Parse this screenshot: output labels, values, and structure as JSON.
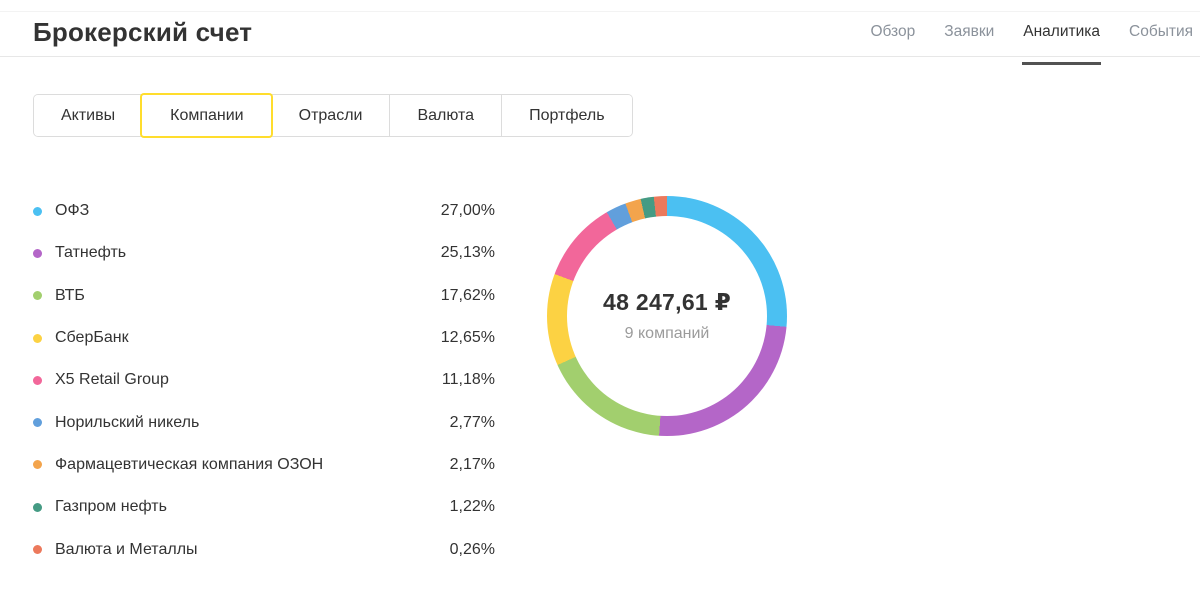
{
  "page": {
    "title": "Брокерский счет"
  },
  "header": {
    "tabs": [
      {
        "label": "Обзор",
        "active": false
      },
      {
        "label": "Заявки",
        "active": false
      },
      {
        "label": "Аналитика",
        "active": true
      },
      {
        "label": "События",
        "active": false
      }
    ]
  },
  "filter_tabs": [
    {
      "label": "Активы",
      "selected": false
    },
    {
      "label": "Компании",
      "selected": true
    },
    {
      "label": "Отрасли",
      "selected": false
    },
    {
      "label": "Валюта",
      "selected": false
    },
    {
      "label": "Портфель",
      "selected": false
    }
  ],
  "summary": {
    "total_value": "48 247,61 ₽",
    "companies_count": "9 компаний"
  },
  "chart_data": {
    "type": "pie",
    "donut": true,
    "title": "",
    "legend_position": "left",
    "categories": [
      "ОФЗ",
      "Татнефть",
      "ВТБ",
      "СберБанк",
      "X5 Retail Group",
      "Норильский никель",
      "Фармацевтическая компания ОЗОН",
      "Газпром нефть",
      "Валюта и Металлы"
    ],
    "values": [
      27.0,
      25.13,
      17.62,
      12.65,
      11.18,
      2.77,
      2.17,
      1.22,
      0.26
    ],
    "value_labels": [
      "27,00%",
      "25,13%",
      "17,62%",
      "12,65%",
      "11,18%",
      "2,77%",
      "2,17%",
      "1,22%",
      "0,26%"
    ],
    "colors": [
      "#4bc0f2",
      "#b466c8",
      "#a2cf6e",
      "#fcd243",
      "#f2679a",
      "#619fdc",
      "#f3a44c",
      "#459b84",
      "#ec795c"
    ],
    "center_label": "48 247,61 ₽",
    "center_sublabel": "9 компаний",
    "start_angle_deg": 0,
    "min_visible_slice_pct": 1.8
  },
  "theme": {
    "accent_yellow": "#ffdd2d",
    "text_primary": "#333333",
    "text_secondary": "#8b929b",
    "divider": "#e7e7e7",
    "active_tab_underline": "#525252"
  }
}
